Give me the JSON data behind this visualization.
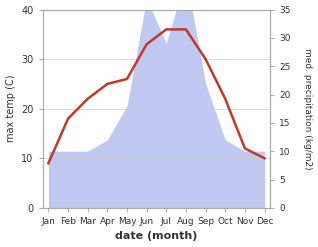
{
  "months": [
    "Jan",
    "Feb",
    "Mar",
    "Apr",
    "May",
    "Jun",
    "Jul",
    "Aug",
    "Sep",
    "Oct",
    "Nov",
    "Dec"
  ],
  "temperature": [
    9,
    18,
    22,
    25,
    26,
    33,
    36,
    36,
    30,
    22,
    12,
    10
  ],
  "precipitation": [
    10,
    10,
    10,
    12,
    18,
    37,
    29,
    41,
    22,
    12,
    10,
    10
  ],
  "temp_color": "#c0392b",
  "precip_color": "#b8c4f0",
  "left_ylim": [
    0,
    40
  ],
  "right_ylim": [
    0,
    35
  ],
  "left_yticks": [
    0,
    10,
    20,
    30,
    40
  ],
  "right_yticks": [
    0,
    5,
    10,
    15,
    20,
    25,
    30,
    35
  ],
  "ylabel_left": "max temp (C)",
  "ylabel_right": "med. precipitation (kg/m2)",
  "xlabel": "date (month)",
  "background_color": "#ffffff"
}
